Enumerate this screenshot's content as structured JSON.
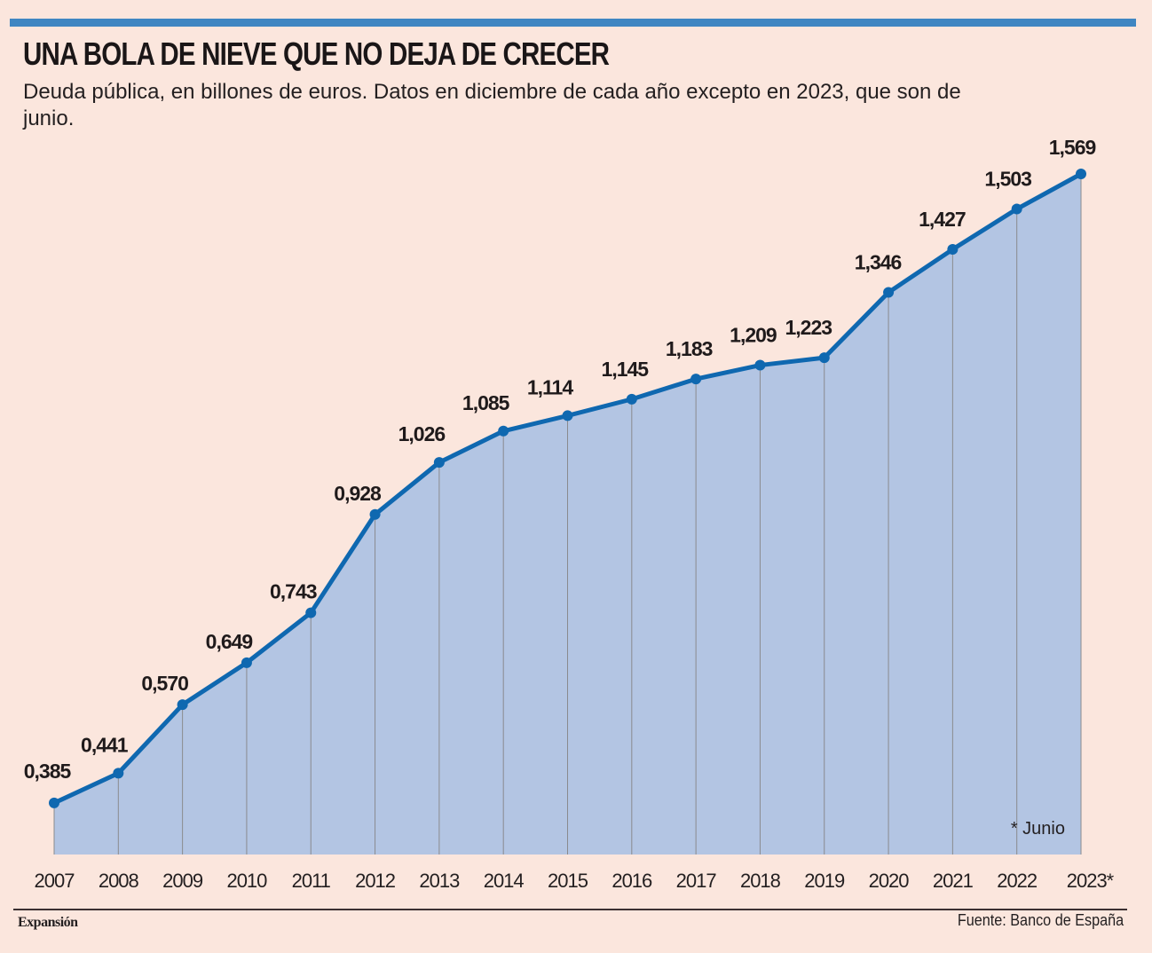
{
  "header": {
    "title": "UNA BOLA DE NIEVE QUE NO DEJA DE CRECER",
    "subtitle": "Deuda pública, en billones de euros. Datos en diciembre de cada año excepto en 2023, que son de junio."
  },
  "footer": {
    "brand": "Expansión",
    "source": "Fuente: Banco de España"
  },
  "colors": {
    "background": "#fbe6dd",
    "accent_bar": "#3f86c2",
    "line": "#0f68b0",
    "fill": "#b3c5e3",
    "gridline": "#8a8a8e",
    "text": "#231f20"
  },
  "chart_data": {
    "type": "area",
    "title": "UNA BOLA DE NIEVE QUE NO DEJA DE CRECER",
    "subtitle": "Deuda pública, en billones de euros. Datos en diciembre de cada año excepto en 2023, que son de junio.",
    "xlabel": "",
    "ylabel": "",
    "categories": [
      "2007",
      "2008",
      "2009",
      "2010",
      "2011",
      "2012",
      "2013",
      "2014",
      "2015",
      "2016",
      "2017",
      "2018",
      "2019",
      "2020",
      "2021",
      "2022",
      "2023*"
    ],
    "values": [
      0.385,
      0.441,
      0.57,
      0.649,
      0.743,
      0.928,
      1.026,
      1.085,
      1.114,
      1.145,
      1.183,
      1.209,
      1.223,
      1.346,
      1.427,
      1.503,
      1.569
    ],
    "data_labels": [
      "0,385",
      "0,441",
      "0,570",
      "0,649",
      "0,743",
      "0,928",
      "1,026",
      "1,085",
      "1,114",
      "1,145",
      "1,183",
      "1,209",
      "1,223",
      "1,346",
      "1,427",
      "1,503",
      "1,569"
    ],
    "ylim": [
      0.288,
      1.569
    ],
    "grid": "vertical lines at each year",
    "annotation": "* Junio",
    "markers": true
  }
}
